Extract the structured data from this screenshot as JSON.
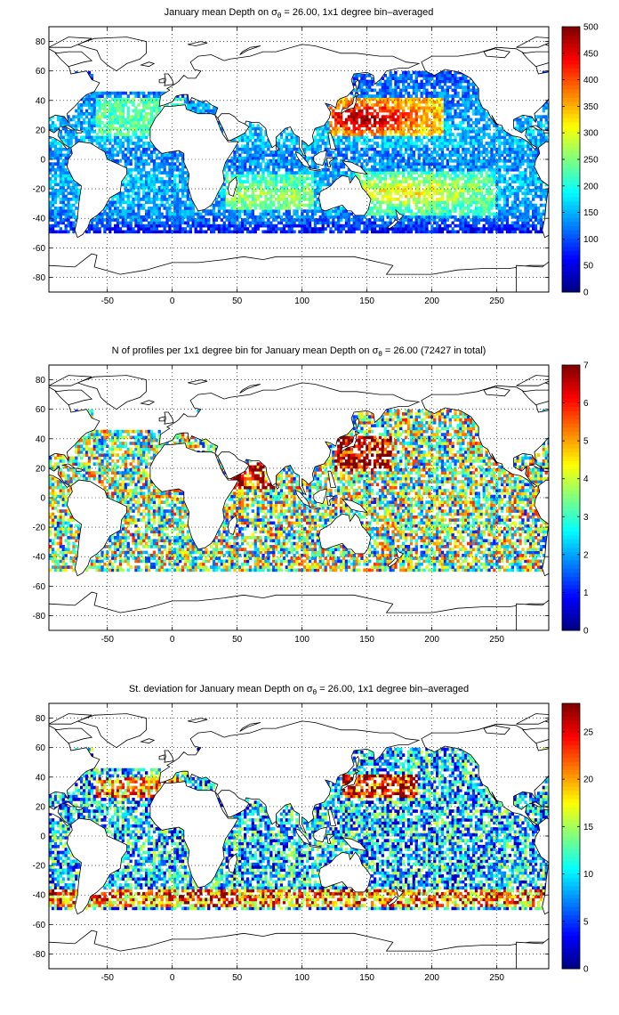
{
  "chart_data": [
    {
      "type": "heatmap",
      "title": "January mean Depth on σθ = 26.00, 1x1 degree bin–averaged",
      "title_parts": {
        "pre": "January mean Depth on σ",
        "sub": "θ",
        "post": " = 26.00, 1x1 degree bin–averaged"
      },
      "xlim": [
        -95,
        290
      ],
      "ylim": [
        -90,
        90
      ],
      "xticks": [
        -50,
        0,
        50,
        100,
        150,
        200,
        250
      ],
      "yticks": [
        -80,
        -60,
        -40,
        -20,
        0,
        20,
        40,
        60,
        80
      ],
      "grid": true,
      "colormap": "jet",
      "clim": [
        0,
        500
      ],
      "colorbar_ticks": [
        0,
        50,
        100,
        150,
        200,
        250,
        300,
        350,
        400,
        450,
        500
      ],
      "field": "mean_depth"
    },
    {
      "type": "heatmap",
      "title": "N of profiles per 1x1 degree bin for January mean Depth on σθ = 26.00 (72427 in total)",
      "title_parts": {
        "pre": "N of profiles per 1x1 degree bin for January mean Depth on σ",
        "sub": "θ",
        "post": " = 26.00 (72427 in total)"
      },
      "xlim": [
        -95,
        290
      ],
      "ylim": [
        -90,
        90
      ],
      "xticks": [
        -50,
        0,
        50,
        100,
        150,
        200,
        250
      ],
      "yticks": [
        -80,
        -60,
        -40,
        -20,
        0,
        20,
        40,
        60,
        80
      ],
      "grid": true,
      "colormap": "jet",
      "clim": [
        0,
        7
      ],
      "colorbar_ticks": [
        0,
        1,
        2,
        3,
        4,
        5,
        6,
        7
      ],
      "field": "count",
      "total": 72427
    },
    {
      "type": "heatmap",
      "title": "St. deviation for January mean Depth on σθ = 26.00, 1x1 degree bin–averaged",
      "title_parts": {
        "pre": "St. deviation for January mean Depth on σ",
        "sub": "θ",
        "post": " = 26.00, 1x1 degree bin–averaged"
      },
      "xlim": [
        -95,
        290
      ],
      "ylim": [
        -90,
        90
      ],
      "xticks": [
        -50,
        0,
        50,
        100,
        150,
        200,
        250
      ],
      "yticks": [
        -80,
        -60,
        -40,
        -20,
        0,
        20,
        40,
        60,
        80
      ],
      "grid": true,
      "colormap": "jet",
      "clim": [
        0,
        28
      ],
      "colorbar_ticks": [
        0,
        5,
        10,
        15,
        20,
        25
      ],
      "field": "std"
    }
  ],
  "colors": {
    "coastline": "#000000",
    "grid": "#000000",
    "background": "#ffffff"
  }
}
